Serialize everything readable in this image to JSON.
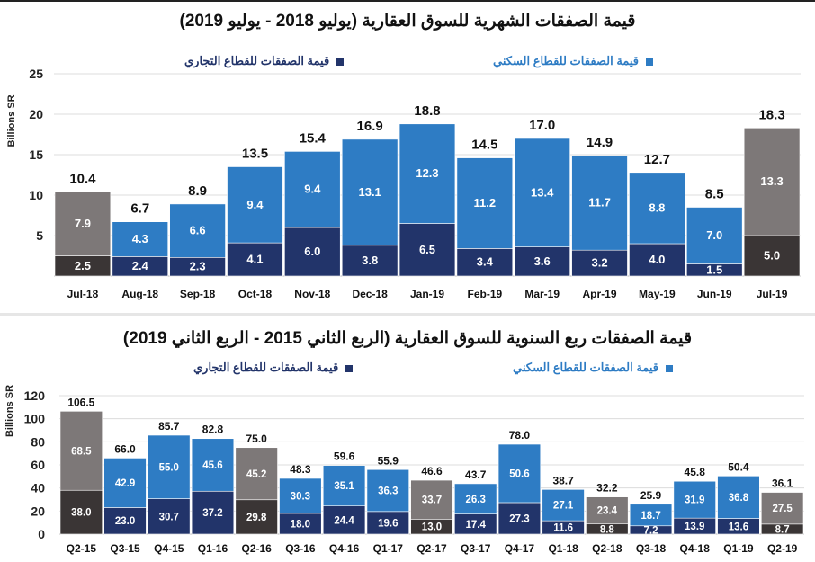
{
  "colors": {
    "residential": "#2e7cc4",
    "commercial": "#22346a",
    "residential_highlight": "#7d7878",
    "commercial_highlight": "#3a3535"
  },
  "chart_data": [
    {
      "type": "bar",
      "stacked": true,
      "title": "قيمة الصفقات الشهرية للسوق العقارية (يوليو 2018 - يوليو 2019)",
      "ylabel": "Billions SR",
      "ylim": [
        0,
        25
      ],
      "yticks": [
        5,
        10,
        15,
        20,
        25
      ],
      "grid": true,
      "legend_placement": "top",
      "categories": [
        "Jul-18",
        "Aug-18",
        "Sep-18",
        "Oct-18",
        "Nov-18",
        "Dec-18",
        "Jan-19",
        "Feb-19",
        "Mar-19",
        "Apr-19",
        "May-19",
        "Jun-19",
        "Jul-19"
      ],
      "series": [
        {
          "name": "قيمة الصفقات للقطاع التجاري",
          "values": [
            2.5,
            2.4,
            2.3,
            4.1,
            6.0,
            3.8,
            6.5,
            3.4,
            3.6,
            3.2,
            4.0,
            1.5,
            5.0
          ]
        },
        {
          "name": "قيمة الصفقات للقطاع السكني",
          "values": [
            7.9,
            4.3,
            6.6,
            9.4,
            9.4,
            13.1,
            12.3,
            11.2,
            13.4,
            11.7,
            8.8,
            7.0,
            13.3
          ]
        }
      ],
      "totals": [
        10.4,
        6.7,
        8.9,
        13.5,
        15.4,
        16.9,
        18.8,
        14.5,
        17.0,
        14.9,
        12.7,
        8.5,
        18.3
      ],
      "highlighted": [
        "Jul-18",
        "Jul-19"
      ]
    },
    {
      "type": "bar",
      "stacked": true,
      "title": "قيمة الصفقات ربع السنوية للسوق العقارية (الربع الثاني 2015 - الربع الثاني 2019)",
      "ylabel": "Billions SR",
      "ylim": [
        0,
        120
      ],
      "yticks": [
        0,
        20,
        40,
        60,
        80,
        100,
        120
      ],
      "grid": true,
      "legend_placement": "top",
      "categories": [
        "Q2-15",
        "Q3-15",
        "Q4-15",
        "Q1-16",
        "Q2-16",
        "Q3-16",
        "Q4-16",
        "Q1-17",
        "Q2-17",
        "Q3-17",
        "Q4-17",
        "Q1-18",
        "Q2-18",
        "Q3-18",
        "Q4-18",
        "Q1-19",
        "Q2-19"
      ],
      "series": [
        {
          "name": "قيمة الصفقات للقطاع التجاري",
          "values": [
            38.0,
            23.0,
            30.7,
            37.2,
            29.8,
            18.0,
            24.4,
            19.6,
            13.0,
            17.4,
            27.3,
            11.6,
            8.8,
            7.2,
            13.9,
            13.6,
            8.7
          ]
        },
        {
          "name": "قيمة الصفقات للقطاع السكني",
          "values": [
            68.5,
            42.9,
            55.0,
            45.6,
            45.2,
            30.3,
            35.1,
            36.3,
            33.7,
            26.3,
            50.6,
            27.1,
            23.4,
            18.7,
            31.9,
            36.8,
            27.5
          ]
        }
      ],
      "totals": [
        106.5,
        66.0,
        85.7,
        82.8,
        75.0,
        48.3,
        59.6,
        55.9,
        46.6,
        43.7,
        78.0,
        38.7,
        32.2,
        25.9,
        45.8,
        50.4,
        36.1
      ],
      "highlighted": [
        "Q2-15",
        "Q2-16",
        "Q2-17",
        "Q2-18",
        "Q2-19"
      ]
    }
  ]
}
